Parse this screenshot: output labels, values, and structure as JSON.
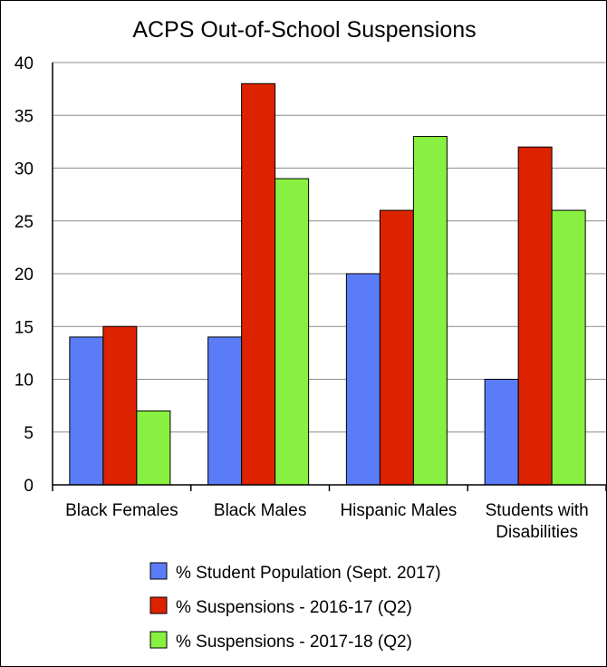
{
  "chart_data": {
    "type": "bar",
    "title": "ACPS Out-of-School Suspensions",
    "categories": [
      [
        "Black Females"
      ],
      [
        "Black Males"
      ],
      [
        "Hispanic Males"
      ],
      [
        "Students with",
        "Disabilities"
      ]
    ],
    "series": [
      {
        "name": "% Student Population (Sept. 2017)",
        "color": "#5b7cf7",
        "values": [
          14,
          14,
          20,
          10
        ]
      },
      {
        "name": "% Suspensions - 2016-17 (Q2)",
        "color": "#dd2200",
        "values": [
          15,
          38,
          26,
          32
        ]
      },
      {
        "name": "% Suspensions - 2017-18 (Q2)",
        "color": "#88f040",
        "values": [
          7,
          29,
          33,
          26
        ]
      }
    ],
    "yticks": [
      0,
      5,
      10,
      15,
      20,
      25,
      30,
      35,
      40
    ],
    "ylim": [
      0,
      40
    ],
    "grid": true,
    "legend_position": "bottom"
  }
}
